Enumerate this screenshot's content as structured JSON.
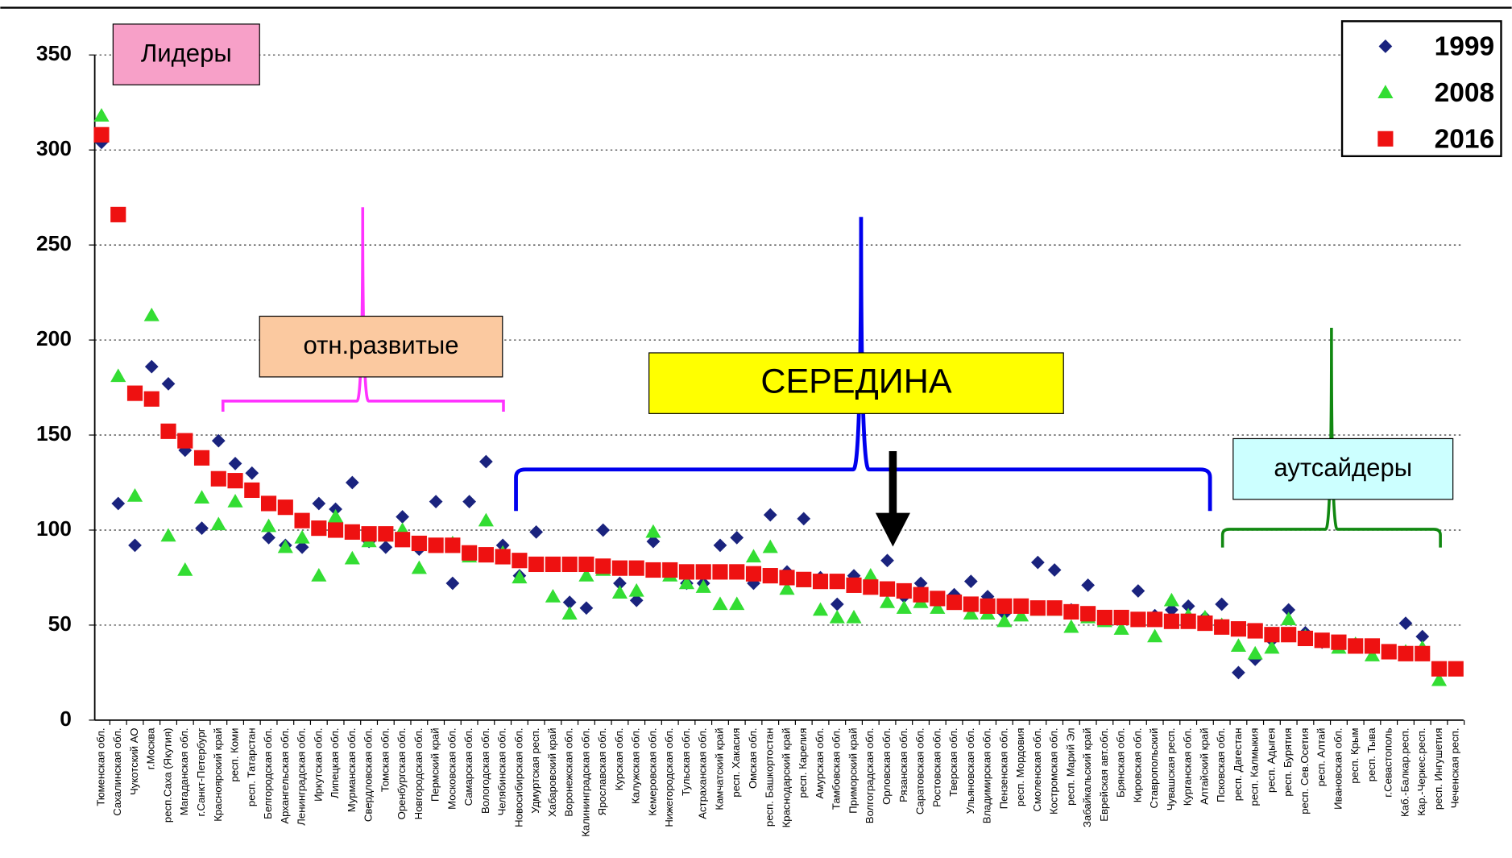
{
  "chart_data": {
    "type": "scatter",
    "categories": [
      "Тюменская обл.",
      "Сахалинская обл.",
      "Чукотский АО",
      "г.Москва",
      "респ.Саха (Якутия)",
      "Магаданская обл.",
      "г.Санкт-Петербург",
      "Красноярский край",
      "респ. Коми",
      "респ. Татарстан",
      "Белгородская обл.",
      "Архангельская обл.",
      "Ленинградская обл.",
      "Иркутская обл.",
      "Липецкая обл.",
      "Мурманская обл.",
      "Свердловская обл.",
      "Томская обл.",
      "Оренбургская обл.",
      "Новгородская обл.",
      "Пермский край",
      "Московская обл.",
      "Самарская обл.",
      "Вологодская обл.",
      "Челябинская обл.",
      "Новосибирская обл.",
      "Удмуртская респ.",
      "Хабаровский край",
      "Воронежская обл.",
      "Калининградская обл.",
      "Ярославская обл.",
      "Курская обл.",
      "Калужская обл.",
      "Кемеровская обл.",
      "Нижегородская обл.",
      "Тульская обл.",
      "Астраханская обл.",
      "Камчатский край",
      "респ. Хакасия",
      "Омская обл.",
      "респ. Башкортостан",
      "Краснодарский край",
      "респ. Карелия",
      "Амурская обл.",
      "Тамбовская обл.",
      "Приморский край",
      "Волгоградская обл.",
      "Орловская обл.",
      "Рязанская обл.",
      "Саратовская обл.",
      "Ростовская обл.",
      "Тверская обл.",
      "Ульяновская обл.",
      "Владимирская обл.",
      "Пензенская обл.",
      "респ. Мордовия",
      "Смоленская обл.",
      "Костромская обл.",
      "респ. Марий Эл",
      "Забайкальский край",
      "Еврейская авт.обл.",
      "Брянская обл.",
      "Кировская обл.",
      "Ставропольский",
      "Чувашская респ.",
      "Курганская обл.",
      "Алтайский край",
      "Псковская обл.",
      "респ. Дагестан",
      "респ. Калмыкия",
      "респ. Адыгея",
      "респ. Бурятия",
      "респ. Сев.Осетия",
      "респ. Алтай",
      "Ивановская обл.",
      "респ. Крым",
      "респ. Тыва",
      "г.Севастополь",
      "Каб.-Балкар.респ.",
      "Кар.-Черкес.респ.",
      "респ. Ингушетия",
      "Чеченская респ."
    ],
    "series": [
      {
        "name": "1999",
        "color": "#1a237e",
        "marker": "diamond",
        "values": [
          304,
          114,
          92,
          186,
          177,
          142,
          101,
          147,
          135,
          130,
          96,
          92,
          91,
          114,
          111,
          125,
          94,
          91,
          107,
          90,
          115,
          72,
          115,
          136,
          92,
          76,
          99,
          82,
          62,
          59,
          100,
          72,
          63,
          94,
          78,
          72,
          72,
          92,
          96,
          72,
          108,
          78,
          106,
          75,
          61,
          76,
          70,
          84,
          65,
          72,
          62,
          66,
          73,
          65,
          56,
          58,
          83,
          79,
          58,
          71,
          54,
          54,
          68,
          55,
          58,
          60,
          54,
          61,
          25,
          32,
          42,
          58,
          46,
          41,
          41,
          40,
          38,
          36,
          51,
          44,
          26,
          27
        ]
      },
      {
        "name": "2008",
        "color": "#33dd33",
        "marker": "triangle",
        "values": [
          318,
          181,
          118,
          213,
          97,
          79,
          117,
          103,
          115,
          null,
          102,
          91,
          96,
          76,
          107,
          85,
          94,
          97,
          100,
          80,
          92,
          93,
          86,
          105,
          88,
          75,
          82,
          65,
          56,
          76,
          79,
          67,
          68,
          99,
          76,
          72,
          70,
          61,
          61,
          86,
          91,
          69,
          73,
          58,
          54,
          54,
          76,
          62,
          59,
          62,
          59,
          62,
          56,
          56,
          52,
          55,
          58,
          58,
          49,
          54,
          52,
          48,
          53,
          44,
          63,
          55,
          54,
          50,
          39,
          35,
          38,
          53,
          44,
          42,
          38,
          40,
          34,
          36,
          36,
          38,
          21,
          27
        ]
      },
      {
        "name": "2016",
        "color": "#ee1111",
        "marker": "square",
        "values": [
          308,
          266,
          172,
          169,
          152,
          147,
          138,
          127,
          126,
          121,
          114,
          112,
          105,
          101,
          100,
          99,
          98,
          98,
          95,
          93,
          92,
          92,
          88,
          87,
          86,
          84,
          82,
          82,
          82,
          82,
          81,
          80,
          80,
          79,
          79,
          78,
          78,
          78,
          78,
          77,
          76,
          75,
          74,
          73,
          73,
          71,
          70,
          69,
          68,
          66,
          64,
          62,
          61,
          60,
          60,
          60,
          59,
          59,
          57,
          56,
          54,
          54,
          53,
          53,
          52,
          52,
          51,
          49,
          48,
          47,
          45,
          45,
          43,
          42,
          41,
          39,
          39,
          36,
          35,
          35,
          27,
          27
        ]
      }
    ],
    "ylim": [
      0,
      350
    ],
    "yticks": [
      0,
      50,
      100,
      150,
      200,
      250,
      300,
      350
    ],
    "grid": true,
    "legend": "top-right",
    "annotations": [
      "Лидеры",
      "отн.развитые",
      "СЕРЕДИНА",
      "аутсайдеры"
    ]
  }
}
